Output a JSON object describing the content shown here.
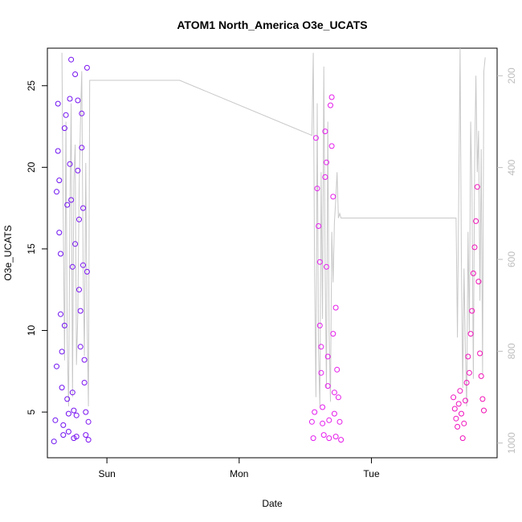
{
  "chart_data": {
    "type": "scatter",
    "title": "ATOM1 North_America O3e_UCATS",
    "xlabel": "Date",
    "ylabel": "O3e_UCATS",
    "x_ticks": [
      {
        "label": "Sun",
        "value": 1.0
      },
      {
        "label": "Mon",
        "value": 2.0
      },
      {
        "label": "Tue",
        "value": 3.0
      }
    ],
    "xlim": [
      0.55,
      3.95
    ],
    "y_ticks": [
      5,
      10,
      15,
      20,
      25
    ],
    "ylim": [
      2.2,
      27.3
    ],
    "y2_ticks": [
      200,
      400,
      600,
      800,
      1000
    ],
    "y2lim": [
      1032,
      140
    ],
    "y2_reversed": true,
    "grid": false,
    "colors": {
      "start": "#6a11f0",
      "mid": "#e41df0",
      "end": "#f20fb0",
      "secondary_line": "#c8c8c8"
    },
    "series": [
      {
        "values_x": [
          0.6,
          0.61,
          0.62,
          0.62,
          0.63,
          0.63,
          0.64,
          0.64,
          0.65,
          0.65,
          0.66,
          0.66,
          0.67,
          0.67,
          0.68,
          0.68,
          0.69,
          0.7,
          0.7,
          0.71,
          0.71,
          0.72,
          0.72,
          0.73,
          0.73,
          0.74,
          0.74,
          0.75,
          0.75,
          0.76,
          0.76
        ],
        "values_y": [
          3.2,
          4.5,
          7.8,
          18.5,
          23.9,
          21.0,
          19.2,
          16.0,
          14.7,
          11.0,
          8.7,
          6.5,
          4.2,
          3.6,
          10.3,
          22.4,
          23.2,
          17.7,
          5.8,
          4.9,
          3.8,
          20.2,
          24.2,
          26.6,
          18.0,
          13.9,
          6.2,
          5.1,
          3.4,
          25.7,
          15.3
        ]
      },
      {
        "values_x": [
          0.77,
          0.77,
          0.78,
          0.78,
          0.79,
          0.79,
          0.8,
          0.8,
          0.81,
          0.81,
          0.82,
          0.82,
          0.83,
          0.83,
          0.84,
          0.84,
          0.85,
          0.85,
          0.86,
          0.86
        ],
        "values_y": [
          3.5,
          4.8,
          24.1,
          19.8,
          16.8,
          12.5,
          11.2,
          9.0,
          23.3,
          21.2,
          17.5,
          14.0,
          8.2,
          6.8,
          5.0,
          3.6,
          26.1,
          13.6,
          4.4,
          3.3
        ]
      },
      {
        "values_x": [
          2.55,
          2.56,
          2.57,
          2.58,
          2.59,
          2.6,
          2.61,
          2.61,
          2.62,
          2.62,
          2.63,
          2.63,
          2.64,
          2.65,
          2.65,
          2.66,
          2.66,
          2.67,
          2.67,
          2.68,
          2.68,
          2.69,
          2.7,
          2.7,
          2.71,
          2.71,
          2.72,
          2.72,
          2.73,
          2.73,
          2.74,
          2.75,
          2.76,
          2.77
        ],
        "values_y": [
          4.4,
          3.4,
          5.0,
          21.8,
          18.7,
          16.4,
          14.2,
          10.3,
          9.0,
          7.4,
          5.3,
          4.3,
          3.6,
          19.4,
          22.2,
          20.3,
          13.9,
          8.4,
          6.6,
          4.5,
          3.4,
          23.8,
          24.3,
          21.3,
          18.2,
          9.8,
          6.2,
          4.9,
          3.5,
          11.4,
          7.6,
          5.9,
          4.4,
          3.3
        ]
      },
      {
        "values_x": [
          3.62,
          3.63,
          3.64,
          3.65,
          3.66,
          3.67,
          3.68,
          3.69,
          3.7,
          3.71,
          3.72,
          3.73,
          3.74,
          3.75,
          3.76,
          3.77,
          3.78,
          3.79,
          3.8,
          3.81,
          3.82,
          3.83,
          3.84,
          3.85
        ],
        "values_y": [
          5.9,
          5.2,
          4.6,
          4.1,
          5.5,
          6.3,
          4.9,
          3.4,
          4.3,
          5.7,
          6.8,
          8.4,
          7.4,
          9.8,
          11.2,
          13.5,
          15.1,
          16.7,
          18.8,
          13.0,
          8.6,
          7.2,
          5.8,
          5.1
        ]
      }
    ],
    "secondary_line": {
      "x": [
        0.66,
        0.67,
        0.68,
        0.69,
        0.7,
        0.71,
        0.72,
        0.73,
        0.74,
        0.75,
        0.76,
        0.77,
        0.78,
        0.79,
        0.8,
        0.81,
        0.82,
        0.83,
        0.84,
        0.85,
        0.86,
        0.87,
        1.55,
        2.55,
        2.56,
        2.57,
        2.58,
        2.59,
        2.6,
        2.61,
        2.62,
        2.63,
        2.64,
        2.65,
        2.66,
        2.67,
        2.68,
        2.69,
        2.7,
        2.71,
        2.72,
        2.73,
        2.74,
        2.75,
        2.76,
        2.77,
        3.62,
        3.63,
        3.64,
        3.65,
        3.66,
        3.67,
        3.68,
        3.69,
        3.7,
        3.71,
        3.72,
        3.73,
        3.74,
        3.75,
        3.76,
        3.77,
        3.78,
        3.79,
        3.8,
        3.81,
        3.82,
        3.83,
        3.84,
        3.85,
        3.86
      ],
      "y": [
        150,
        520,
        820,
        300,
        780,
        920,
        500,
        260,
        900,
        430,
        350,
        830,
        720,
        450,
        300,
        190,
        620,
        810,
        390,
        730,
        920,
        210,
        210,
        330,
        150,
        620,
        900,
        260,
        800,
        920,
        410,
        730,
        180,
        620,
        880,
        300,
        760,
        910,
        540,
        650,
        520,
        470,
        410,
        510,
        500,
        510,
        510,
        510,
        510,
        770,
        460,
        140,
        600,
        880,
        620,
        800,
        920,
        540,
        760,
        300,
        450,
        860,
        390,
        200,
        410,
        320,
        690,
        360,
        850,
        190,
        160
      ]
    }
  }
}
